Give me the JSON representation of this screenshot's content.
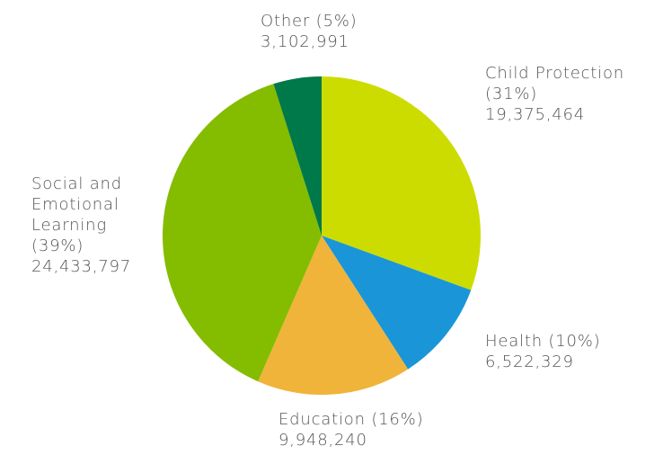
{
  "chart_data": {
    "type": "pie",
    "categories": [
      "Child Protection (31%)",
      "Health (10%)",
      "Education (16%)",
      "Social and Emotional Learning (39%)",
      "Other (5%)"
    ],
    "values": [
      19375464,
      6522329,
      9948240,
      24433797,
      3102991
    ],
    "value_labels": [
      "19,375,464",
      "6,522,329",
      "9,948,240",
      "24,433,797",
      "3,102,991"
    ],
    "colors": [
      "#cddc00",
      "#1a96d8",
      "#f0b43a",
      "#84bc00",
      "#00794a"
    ]
  }
}
